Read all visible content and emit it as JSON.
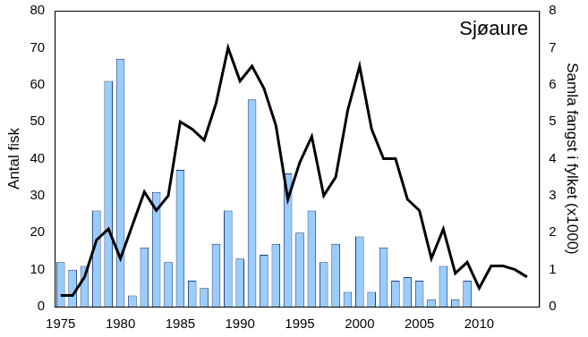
{
  "chart_data": {
    "type": "bar",
    "title": "Sjøaure",
    "ylabel": "Antal fisk",
    "y2label": "Samla fangst i fylket (x1000)",
    "x": [
      1975,
      1976,
      1977,
      1978,
      1979,
      1980,
      1981,
      1982,
      1983,
      1984,
      1985,
      1986,
      1987,
      1988,
      1989,
      1990,
      1991,
      1992,
      1993,
      1994,
      1995,
      1996,
      1997,
      1998,
      1999,
      2000,
      2001,
      2002,
      2003,
      2004,
      2005,
      2006,
      2007,
      2008,
      2009,
      2010,
      2011,
      2012,
      2013,
      2014
    ],
    "xlim": [
      1974.5,
      2015
    ],
    "xticks": [
      1975,
      1980,
      1985,
      1990,
      1995,
      2000,
      2005,
      2010
    ],
    "ylim": [
      0,
      80
    ],
    "yticks": [
      0,
      10,
      20,
      30,
      40,
      50,
      60,
      70,
      80
    ],
    "y2lim": [
      0,
      8
    ],
    "y2ticks": [
      0,
      1,
      2,
      3,
      4,
      5,
      6,
      7,
      8
    ],
    "grid": false,
    "series": [
      {
        "type": "bar",
        "color": "#99ccff",
        "values": [
          12,
          10,
          11,
          26,
          61,
          67,
          3,
          16,
          31,
          12,
          37,
          7,
          5,
          17,
          26,
          13,
          56,
          14,
          17,
          36,
          20,
          26,
          12,
          17,
          4,
          19,
          4,
          16,
          7,
          8,
          7,
          2,
          11,
          2,
          7,
          null,
          null,
          null,
          null,
          null
        ]
      },
      {
        "type": "line",
        "color": "#000000",
        "axis": "y2",
        "values": [
          0.3,
          0.3,
          0.8,
          1.8,
          2.1,
          1.3,
          2.2,
          3.1,
          2.6,
          3.0,
          5.0,
          4.8,
          4.5,
          5.5,
          7.0,
          6.1,
          6.5,
          5.9,
          4.9,
          2.9,
          3.9,
          4.6,
          3.0,
          3.5,
          5.3,
          6.5,
          4.8,
          4.0,
          4.0,
          2.9,
          2.6,
          1.3,
          2.1,
          0.9,
          1.2,
          0.5,
          1.1,
          1.1,
          1.0,
          0.8
        ]
      }
    ]
  }
}
